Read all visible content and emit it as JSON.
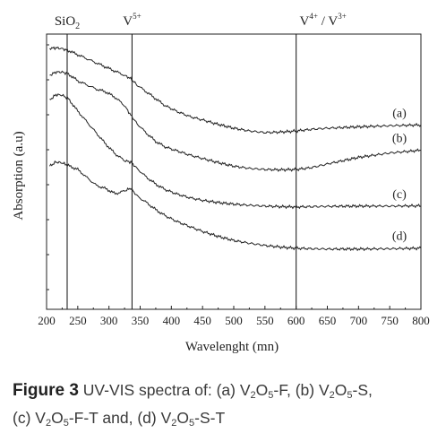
{
  "chart_data": {
    "type": "line",
    "xlabel": "Wavelenght (mn)",
    "ylabel": "Absorption (a.u)",
    "xlim": [
      200,
      800
    ],
    "x_ticks": [
      "200",
      "250",
      "300",
      "350",
      "400",
      "450",
      "500",
      "550",
      "600",
      "650",
      "700",
      "750",
      "800"
    ],
    "grid": false,
    "reference_lines": [
      {
        "x": 233,
        "label": "SiO",
        "sub": "2",
        "sup": ""
      },
      {
        "x": 337,
        "label": "V",
        "sub": "",
        "sup": "5+"
      },
      {
        "x": 600,
        "label": "V",
        "sub": "",
        "sup": "4+",
        "label2": "/ V",
        "sup2": "3+"
      }
    ],
    "x": [
      205,
      215,
      225,
      235,
      250,
      265,
      280,
      295,
      310,
      325,
      335,
      345,
      360,
      375,
      390,
      410,
      430,
      450,
      475,
      500,
      525,
      550,
      575,
      600,
      625,
      650,
      700,
      750,
      800
    ],
    "series": [
      {
        "label": "(a)",
        "values": [
          0.948,
          0.95,
          0.947,
          0.94,
          0.925,
          0.91,
          0.895,
          0.88,
          0.865,
          0.85,
          0.838,
          0.815,
          0.79,
          0.765,
          0.74,
          0.718,
          0.7,
          0.688,
          0.672,
          0.658,
          0.648,
          0.642,
          0.644,
          0.648,
          0.654,
          0.658,
          0.663,
          0.667,
          0.67
        ]
      },
      {
        "label": "(b)",
        "values": [
          0.85,
          0.862,
          0.862,
          0.855,
          0.83,
          0.815,
          0.8,
          0.79,
          0.77,
          0.74,
          0.705,
          0.675,
          0.64,
          0.61,
          0.59,
          0.575,
          0.56,
          0.548,
          0.533,
          0.52,
          0.512,
          0.508,
          0.507,
          0.508,
          0.515,
          0.528,
          0.552,
          0.568,
          0.578
        ]
      },
      {
        "label": "(c)",
        "values": [
          0.76,
          0.78,
          0.778,
          0.765,
          0.72,
          0.68,
          0.64,
          0.6,
          0.565,
          0.54,
          0.535,
          0.512,
          0.48,
          0.455,
          0.435,
          0.418,
          0.405,
          0.396,
          0.388,
          0.382,
          0.378,
          0.375,
          0.373,
          0.372,
          0.373,
          0.374,
          0.375,
          0.375,
          0.376
        ]
      },
      {
        "label": "(d)",
        "values": [
          0.52,
          0.535,
          0.532,
          0.522,
          0.508,
          0.478,
          0.45,
          0.438,
          0.42,
          0.43,
          0.44,
          0.412,
          0.388,
          0.362,
          0.34,
          0.318,
          0.3,
          0.283,
          0.265,
          0.25,
          0.24,
          0.232,
          0.226,
          0.222,
          0.22,
          0.219,
          0.219,
          0.22,
          0.222
        ]
      }
    ]
  },
  "caption": {
    "figure": "Figure 3",
    "line1_a": "UV-VIS spectra of: (a) V",
    "line1_b": "O",
    "line1_c": "-F, (b) V",
    "line1_d": "O",
    "line1_e": "-S,",
    "line2_a": "(c) V",
    "line2_b": "O",
    "line2_c": "-F-T and, (d) V",
    "line2_d": "O",
    "line2_e": "-S-T",
    "sub_2": "2",
    "sub_5": "5"
  }
}
